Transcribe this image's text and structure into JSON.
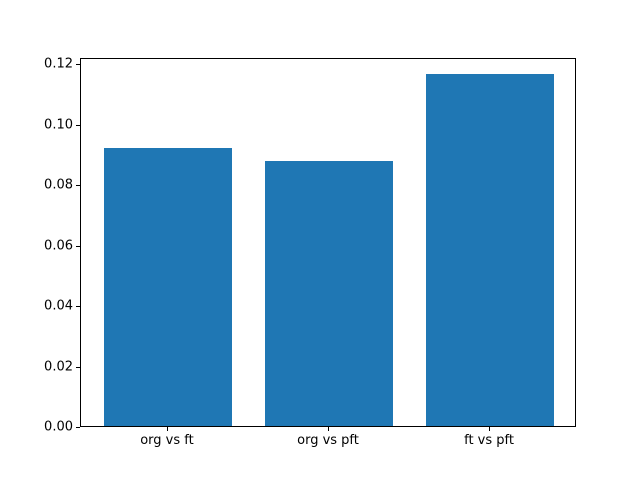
{
  "chart_data": {
    "type": "bar",
    "categories": [
      "org vs ft",
      "org vs pft",
      "ft vs pft"
    ],
    "values": [
      0.0918,
      0.0877,
      0.1164
    ],
    "title": "",
    "xlabel": "",
    "ylabel": "",
    "ylim": [
      0,
      0.122
    ],
    "xlim": [
      -0.54,
      2.54
    ],
    "yticks": [
      0.0,
      0.02,
      0.04,
      0.06,
      0.08,
      0.1,
      0.12
    ],
    "ytick_labels": [
      "0.00",
      "0.02",
      "0.04",
      "0.06",
      "0.08",
      "0.10",
      "0.12"
    ],
    "bar_color": "#1f77b4",
    "bar_width_fraction": 0.8,
    "axis_color": "#000000",
    "background_color": "#ffffff",
    "grid": false,
    "legend": null
  }
}
